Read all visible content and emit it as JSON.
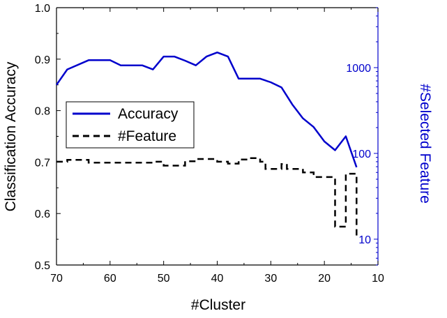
{
  "chart_data": {
    "type": "line",
    "xlabel": "#Cluster",
    "ylabel": "Classification Accuracy",
    "y2label": "#Selected Feature",
    "xlim": [
      70,
      10
    ],
    "ylim": [
      0.5,
      1.0
    ],
    "y2lim": [
      5,
      5000
    ],
    "y2scale": "log",
    "x_ticks": [
      70,
      60,
      50,
      40,
      30,
      20,
      10
    ],
    "y_ticks": [
      0.5,
      0.6,
      0.7,
      0.8,
      0.9,
      1.0
    ],
    "y2_ticks": [
      10,
      100,
      1000
    ],
    "x_tick_labels": [
      "70",
      "60",
      "50",
      "40",
      "30",
      "20",
      "10"
    ],
    "y_tick_labels": [
      "0.5",
      "0.6",
      "0.7",
      "0.8",
      "0.9",
      "1.0"
    ],
    "y2_tick_labels": [
      "10",
      "100",
      "1000"
    ],
    "legend_position": "center-left",
    "colors": {
      "accuracy": "#0000cc",
      "feature": "#000000",
      "right_axis": "#0000cc"
    },
    "series": [
      {
        "name": "Accuracy",
        "axis": "left",
        "style": "solid",
        "x": [
          70,
          68,
          64,
          60,
          58,
          54,
          52,
          50,
          48,
          46,
          44,
          42,
          40,
          38,
          36,
          32,
          30,
          28,
          26,
          24,
          22,
          20,
          18,
          16,
          14
        ],
        "y": [
          0.85,
          0.88,
          0.898,
          0.898,
          0.888,
          0.888,
          0.88,
          0.905,
          0.905,
          0.897,
          0.888,
          0.905,
          0.913,
          0.905,
          0.862,
          0.862,
          0.855,
          0.845,
          0.812,
          0.785,
          0.768,
          0.74,
          0.723,
          0.75,
          0.69
        ]
      },
      {
        "name": "#Feature",
        "axis": "right",
        "style": "dashed",
        "x": [
          70,
          68,
          64,
          60,
          52,
          50,
          48,
          46,
          44,
          40,
          38,
          36,
          34,
          32,
          31,
          30,
          28,
          27,
          24,
          22,
          18,
          16,
          14
        ],
        "y": [
          80,
          84,
          78,
          78,
          80,
          72,
          72,
          81,
          86,
          80,
          76,
          85,
          88,
          80,
          66,
          66,
          75,
          66,
          60,
          53,
          14,
          58,
          10
        ]
      }
    ]
  }
}
